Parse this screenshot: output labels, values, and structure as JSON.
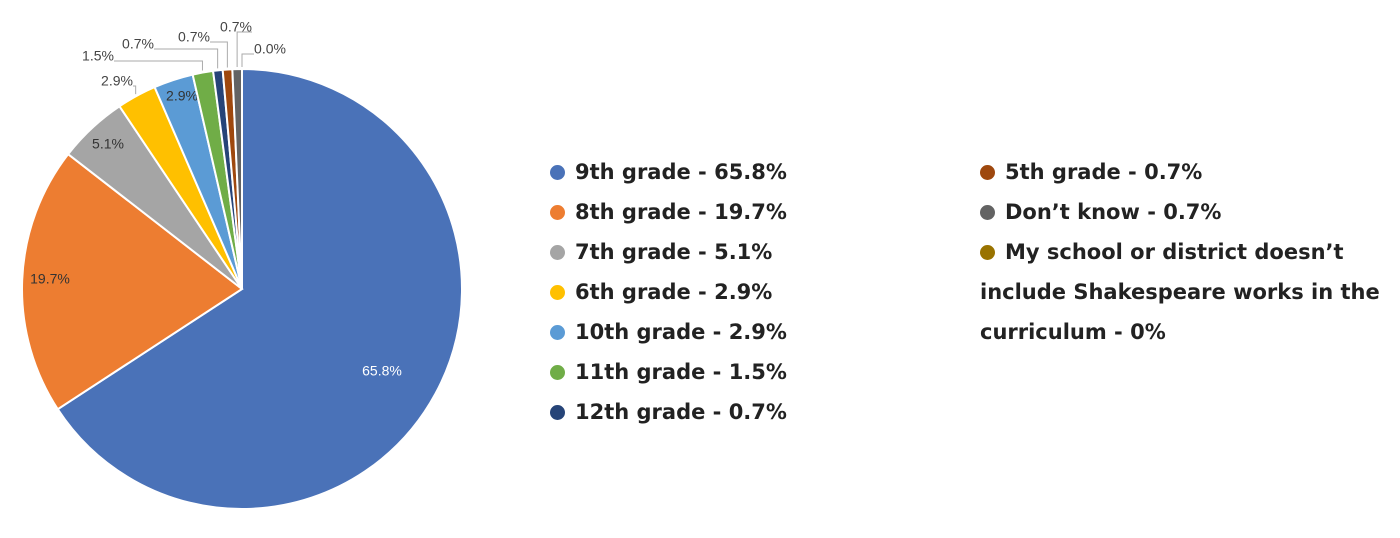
{
  "chart_data": {
    "type": "pie",
    "categories": [
      "9th grade - 65.8%",
      "8th grade - 19.7%",
      "7th grade - 5.1%",
      "6th grade - 2.9%",
      "10th grade - 2.9%",
      "11th grade - 1.5%",
      "12th grade - 0.7%",
      "5th grade - 0.7%",
      "Don’t know - 0.7%",
      "My school or district doesn’t include Shakespeare works in the curriculum - 0%"
    ],
    "values": [
      65.8,
      19.7,
      5.1,
      2.9,
      2.9,
      1.5,
      0.7,
      0.7,
      0.7,
      0
    ],
    "value_labels": [
      "65.8%",
      "19.7%",
      "5.1%",
      "2.9%",
      "2.9%",
      "1.5%",
      "0.7%",
      "0.7%",
      "0.7%",
      "0.0%"
    ],
    "colors": [
      "#4a72b8",
      "#ed7d31",
      "#a5a5a5",
      "#ffc000",
      "#5b9bd5",
      "#70ad47",
      "#264478",
      "#9e480e",
      "#636363",
      "#997300"
    ]
  }
}
